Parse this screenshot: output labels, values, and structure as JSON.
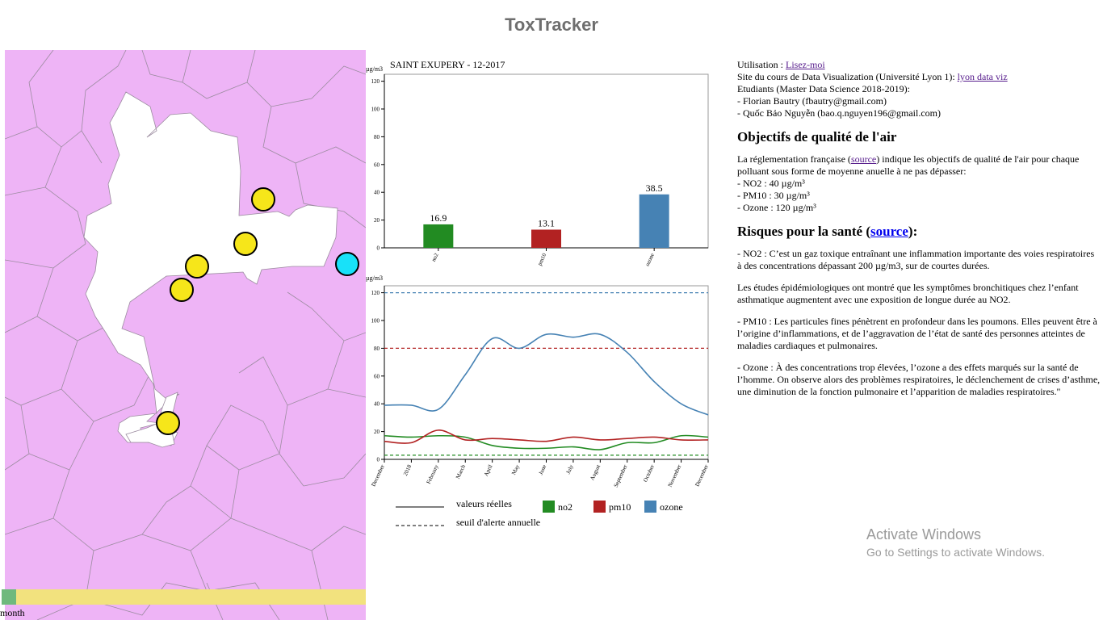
{
  "app": {
    "title": "ToxTracker"
  },
  "slider": {
    "label": "month",
    "position_fraction": 0.0
  },
  "colors": {
    "no2": "#228b22",
    "pm10": "#b22222",
    "ozone": "#4682b4",
    "map_fill": "#eeb4f6",
    "station": "#f6e61a",
    "station_selected": "#18e1f9"
  },
  "bar_chart": {
    "unit": "µg/m3",
    "title": "SAINT EXUPERY - 12-2017"
  },
  "line_chart": {
    "unit": "µg/m3"
  },
  "chart_data": [
    {
      "type": "bar",
      "title": "SAINT EXUPERY - 12-2017",
      "ylabel": "µg/m3",
      "categories": [
        "no2",
        "pm10",
        "ozone"
      ],
      "values": [
        16.9,
        13.1,
        38.5
      ],
      "value_labels": [
        "16.9",
        "13.1",
        "38.5"
      ],
      "ylim": [
        0,
        125
      ],
      "yticks": [
        0,
        20,
        40,
        60,
        80,
        100,
        120
      ],
      "grid": false
    },
    {
      "type": "line",
      "ylabel": "µg/m3",
      "x_labels": [
        "December",
        "2018",
        "February",
        "March",
        "April",
        "May",
        "June",
        "July",
        "August",
        "September",
        "October",
        "November",
        "December"
      ],
      "ylim": [
        0,
        125
      ],
      "yticks": [
        0,
        20,
        40,
        60,
        80,
        100,
        120
      ],
      "series": [
        {
          "key": "no2",
          "values": [
            17,
            16,
            17,
            16,
            10,
            8,
            8,
            9,
            7,
            12,
            12,
            17,
            16
          ]
        },
        {
          "key": "pm10",
          "values": [
            13,
            12,
            21,
            14,
            15,
            14,
            13,
            16,
            14,
            15,
            16,
            14,
            14
          ]
        },
        {
          "key": "ozone",
          "values": [
            39,
            39,
            36,
            61,
            87,
            80,
            90,
            88,
            90,
            77,
            56,
            40,
            32
          ]
        }
      ],
      "thresholds": [
        {
          "key": "ozone",
          "value": 120
        },
        {
          "key": "pm10",
          "value": 80
        },
        {
          "key": "no2",
          "value": 3
        }
      ],
      "legend": {
        "solid_label": "valeurs réelles",
        "dashed_label": "seuil d'alerte annuelle",
        "no2": "no2",
        "pm10": "pm10",
        "ozone": "ozone"
      }
    }
  ],
  "info": {
    "usage_prefix": "Utilisation : ",
    "usage_link": "Lisez-moi",
    "course_prefix": "Site du cours de Data Visualization (Université Lyon 1): ",
    "course_link": "lyon data viz",
    "students": "Etudiants (Master Data Science 2018-2019):",
    "student1": "- Florian Bautry (fbautry@gmail.com)",
    "student2": "- Quốc Bảo Nguyễn (bao.q.nguyen196@gmail.com)",
    "objectives_title": "Objectifs de qualité de l'air",
    "objectives_text_1": "La réglementation française (",
    "objectives_link": "source",
    "objectives_text_2": ") indique les objectifs de qualité de l'air pour chaque polluant sous forme de moyenne anuelle à ne pas dépasser:",
    "obj_no2": "- NO2 : 40 µg/m³",
    "obj_pm10": "- PM10 : 30 µg/m³",
    "obj_ozone": "- Ozone : 120 µg/m³",
    "risks_title_1": "Risques pour la santé (",
    "risks_link": "source",
    "risks_title_2": "):",
    "risk_no2": "- NO2 : C’est un gaz toxique entraînant une inflammation importante des voies respiratoires à des concentrations dépassant 200 µg/m3, sur de courtes durées.",
    "risk_no2_2": "Les études épidémiologiques ont montré que les symptômes bronchitiques chez l’enfant asthmatique augmentent avec une exposition de longue durée au NO2.",
    "risk_pm10": "- PM10 : Les particules fines pénètrent en profondeur dans les poumons. Elles peuvent être à l’origine d’inflammations, et de l’aggravation de l’état de santé des personnes atteintes de maladies cardiaques et pulmonaires.",
    "risk_ozone": "- Ozone : À des concentrations trop élevées, l’ozone a des effets marqués sur la santé de l’homme. On observe alors des problèmes respiratoires, le déclenchement de crises d’asthme, une diminution de la fonction pulmonaire et l’apparition de maladies respiratoires.\""
  },
  "watermark": {
    "line1": "Activate Windows",
    "line2": "Go to Settings to activate Windows."
  }
}
